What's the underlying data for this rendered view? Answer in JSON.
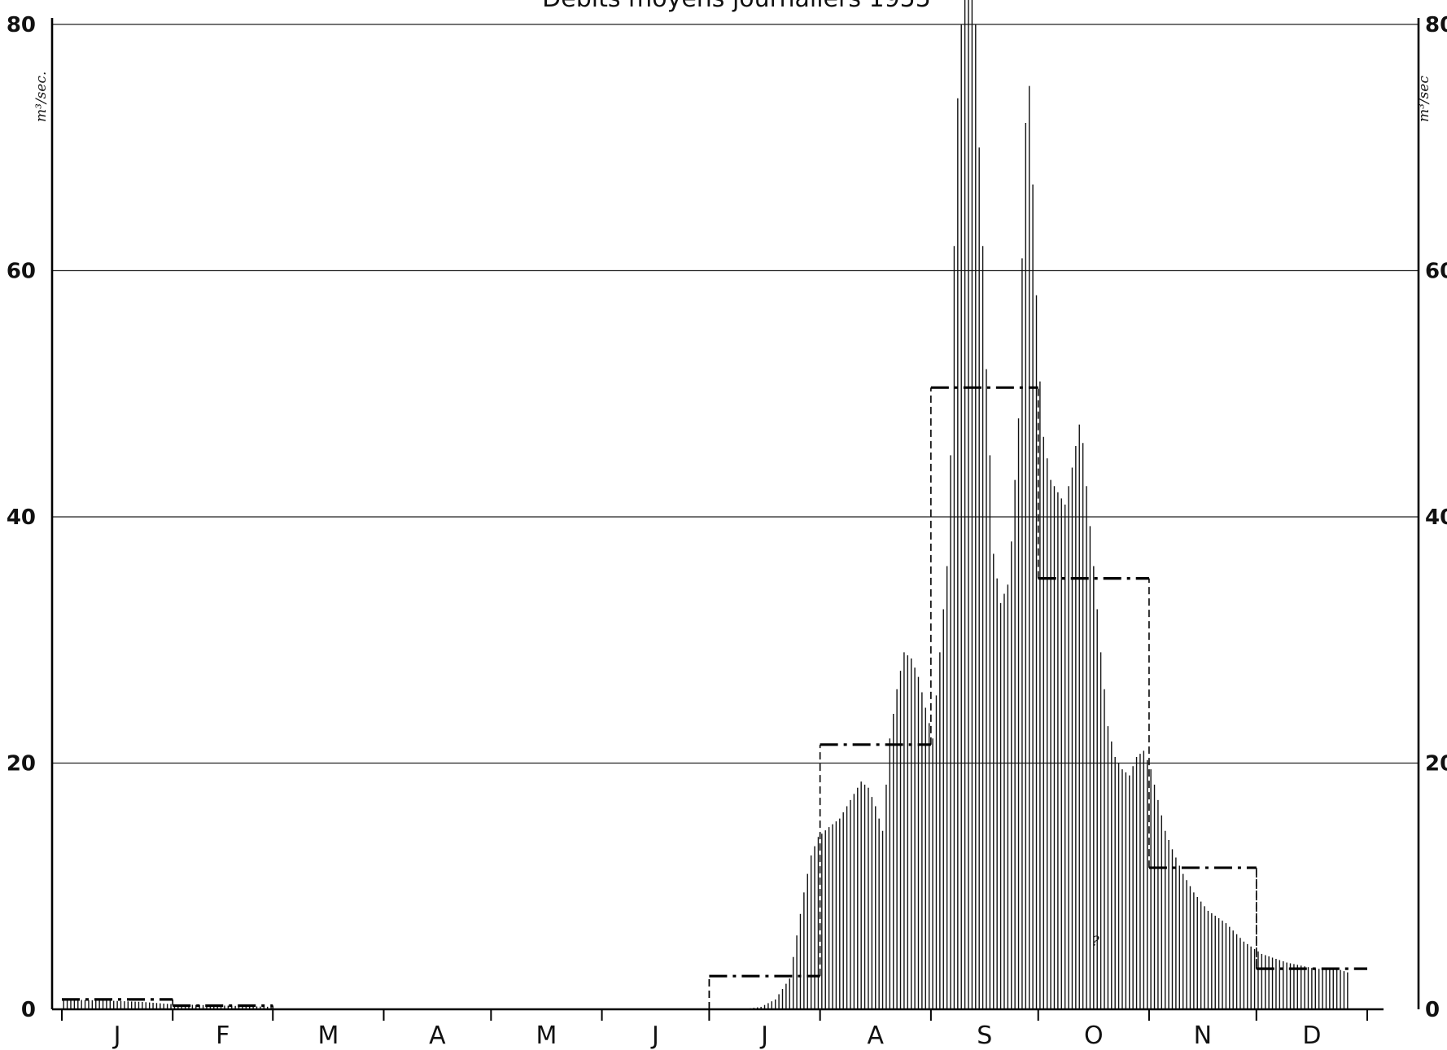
{
  "chart_data": {
    "type": "bar",
    "title": "Débits moyens journaliers 1955",
    "ylabel_left": "m³/sec.",
    "ylabel_right": "m³/sec",
    "ylim": [
      0,
      80
    ],
    "yticks": [
      0,
      20,
      40,
      60,
      80
    ],
    "grid": true,
    "months": [
      "J",
      "F",
      "M",
      "A",
      "M",
      "J",
      "J",
      "A",
      "S",
      "O",
      "N",
      "D"
    ],
    "series": [
      {
        "kind": "daily_discharge_bars",
        "points": [
          [
            0,
            0.8
          ],
          [
            13,
            0.7
          ],
          [
            22,
            0.6
          ],
          [
            31,
            0.4
          ],
          [
            45,
            0.3
          ],
          [
            58,
            0.2
          ],
          [
            59,
            0.0
          ],
          [
            190,
            0.0
          ],
          [
            195,
            0.2
          ],
          [
            199,
            0.8
          ],
          [
            203,
            2.5
          ],
          [
            205,
            6.0
          ],
          [
            207,
            9.5
          ],
          [
            209,
            12.5
          ],
          [
            211,
            14.0
          ],
          [
            214,
            14.8
          ],
          [
            217,
            15.5
          ],
          [
            220,
            17.0
          ],
          [
            223,
            18.5
          ],
          [
            225,
            18.0
          ],
          [
            227,
            16.5
          ],
          [
            229,
            14.5
          ],
          [
            231,
            22.0
          ],
          [
            233,
            26.0
          ],
          [
            235,
            29.0
          ],
          [
            237,
            28.5
          ],
          [
            239,
            27.0
          ],
          [
            241,
            24.5
          ],
          [
            243,
            22.0
          ],
          [
            245,
            29.0
          ],
          [
            247,
            36.0
          ],
          [
            248,
            45.0
          ],
          [
            249,
            62.0
          ],
          [
            250,
            74.0
          ],
          [
            251,
            80.0
          ],
          [
            252,
            88.0
          ],
          [
            253,
            90.0
          ],
          [
            255,
            80.0
          ],
          [
            256,
            70.0
          ],
          [
            257,
            62.0
          ],
          [
            258,
            52.0
          ],
          [
            259,
            45.0
          ],
          [
            260,
            37.0
          ],
          [
            262,
            33.0
          ],
          [
            264,
            34.5
          ],
          [
            265,
            38.0
          ],
          [
            266,
            43.0
          ],
          [
            267,
            48.0
          ],
          [
            268,
            61.0
          ],
          [
            269,
            72.0
          ],
          [
            270,
            75.0
          ],
          [
            271,
            67.0
          ],
          [
            272,
            58.0
          ],
          [
            273,
            51.0
          ],
          [
            274,
            46.5
          ],
          [
            276,
            43.0
          ],
          [
            278,
            42.0
          ],
          [
            280,
            41.0
          ],
          [
            282,
            44.0
          ],
          [
            284,
            47.5
          ],
          [
            285,
            46.0
          ],
          [
            286,
            42.5
          ],
          [
            288,
            36.0
          ],
          [
            290,
            29.0
          ],
          [
            292,
            23.0
          ],
          [
            294,
            20.5
          ],
          [
            296,
            19.5
          ],
          [
            298,
            19.0
          ],
          [
            300,
            20.5
          ],
          [
            302,
            21.0
          ],
          [
            304,
            19.5
          ],
          [
            306,
            17.0
          ],
          [
            308,
            14.5
          ],
          [
            310,
            13.0
          ],
          [
            313,
            11.0
          ],
          [
            316,
            9.5
          ],
          [
            320,
            8.0
          ],
          [
            325,
            7.0
          ],
          [
            330,
            5.5
          ],
          [
            335,
            4.5
          ],
          [
            342,
            3.8
          ],
          [
            350,
            3.3
          ],
          [
            357,
            3.2
          ],
          [
            359,
            3.0
          ]
        ]
      },
      {
        "kind": "monthly_mean",
        "values": [
          0.8,
          0.3,
          0,
          0,
          0,
          0,
          2.7,
          21.5,
          50.5,
          35.0,
          11.5,
          3.3
        ]
      }
    ],
    "annotation": "?"
  }
}
